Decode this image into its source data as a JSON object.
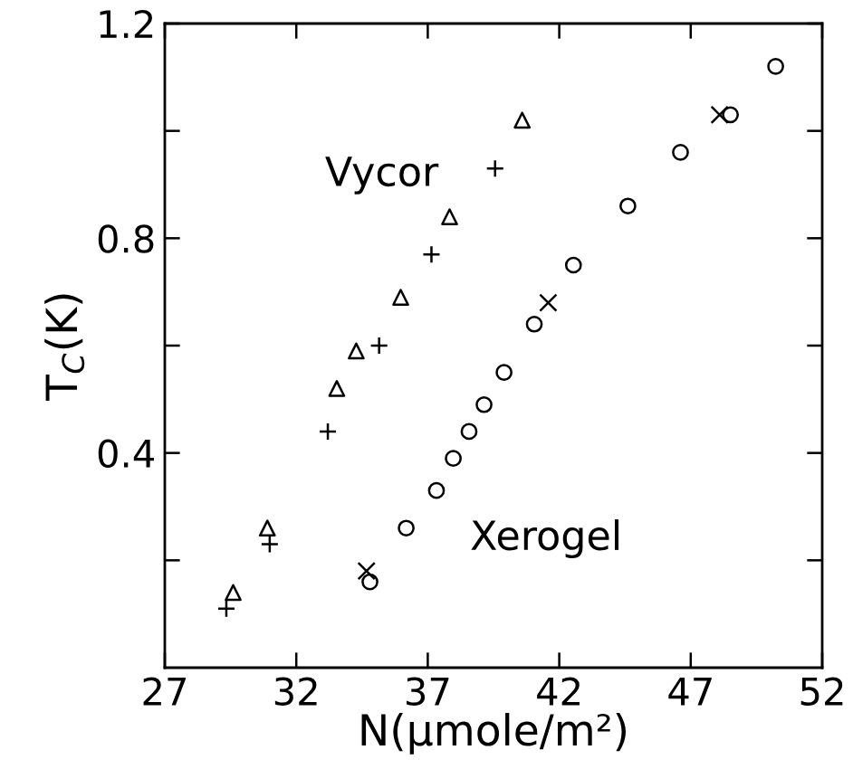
{
  "chart_data": {
    "type": "scatter",
    "xlabel": "N(μmole/m²)",
    "ylabel": "T$_{C}$(K)",
    "xlim": [
      27,
      52
    ],
    "xticks": [
      27,
      32,
      37,
      42,
      47,
      52
    ],
    "ylim": [
      0,
      1.2
    ],
    "yticks": [
      {
        "value": 0.2,
        "label": null
      },
      0.4,
      {
        "value": 0.6,
        "label": null
      },
      0.8,
      {
        "value": 1.0,
        "label": null
      },
      1.2
    ],
    "grid": false,
    "legend": false,
    "series": [
      {
        "marker": "triangle",
        "color": "#000000",
        "x": [
          29.6,
          30.9,
          33.54,
          34.28,
          35.97,
          37.83,
          40.59
        ],
        "values": [
          0.14,
          0.26,
          0.52,
          0.59,
          0.69,
          0.84,
          1.02
        ]
      },
      {
        "marker": "plus",
        "color": "#000000",
        "x": [
          29.34,
          30.99,
          33.2,
          35.15,
          37.14,
          39.56
        ],
        "values": [
          0.11,
          0.23,
          0.44,
          0.6,
          0.77,
          0.93
        ]
      },
      {
        "marker": "cross",
        "color": "#000000",
        "x": [
          34.67,
          41.58,
          48.1
        ],
        "values": [
          0.18,
          0.68,
          1.03
        ]
      },
      {
        "marker": "circle",
        "color": "#000000",
        "x": [
          34.8,
          36.18,
          37.33,
          37.97,
          38.57,
          39.14,
          39.9,
          41.05,
          42.54,
          44.61,
          46.61,
          48.51,
          50.23
        ],
        "values": [
          0.16,
          0.26,
          0.33,
          0.39,
          0.44,
          0.49,
          0.55,
          0.64,
          0.75,
          0.86,
          0.96,
          1.03,
          1.12
        ]
      }
    ],
    "annotations": [
      "Vycor",
      "Xerogel"
    ]
  }
}
